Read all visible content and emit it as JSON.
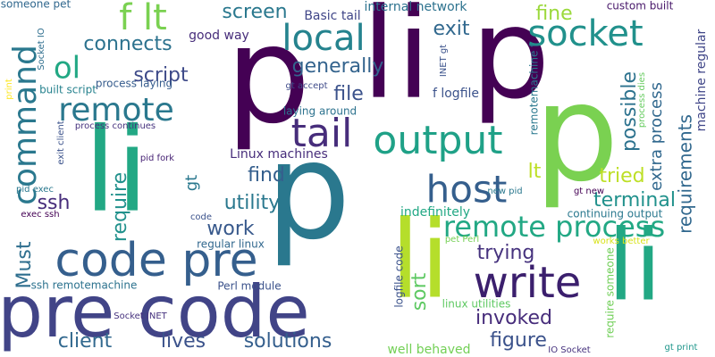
{
  "word_cloud": {
    "words": [
      {
        "text": "pre code",
        "color": "#414487"
      },
      {
        "text": "p",
        "color": "#440154"
      },
      {
        "text": "li",
        "color": "#22a884"
      },
      {
        "text": "p",
        "color": "#7ad151"
      },
      {
        "text": "li",
        "color": "#b5de2b"
      },
      {
        "text": "li",
        "color": "#22a884"
      },
      {
        "text": "p",
        "color": "#2a788e"
      },
      {
        "text": "li p",
        "color": "#440154"
      },
      {
        "text": "write",
        "color": "#3b1f6d"
      },
      {
        "text": "code pre",
        "color": "#355f8d"
      },
      {
        "text": "remote process",
        "color": "#22a884"
      },
      {
        "text": "output",
        "color": "#1fa187"
      },
      {
        "text": "tail",
        "color": "#472d7b"
      },
      {
        "text": "host",
        "color": "#355f8d"
      },
      {
        "text": "socket",
        "color": "#21918c"
      },
      {
        "text": "local",
        "color": "#25838e"
      },
      {
        "text": "remote",
        "color": "#2a788e"
      },
      {
        "text": "command",
        "color": "#2a788e"
      },
      {
        "text": "f lt",
        "color": "#7ad151"
      },
      {
        "text": "ol",
        "color": "#22a884"
      },
      {
        "text": "client",
        "color": "#31688e"
      },
      {
        "text": "lives",
        "color": "#3b528b"
      },
      {
        "text": "solutions",
        "color": "#355f8d"
      },
      {
        "text": "figure",
        "color": "#3b528b"
      },
      {
        "text": "invoked",
        "color": "#472d7b"
      },
      {
        "text": "trying",
        "color": "#46327e"
      },
      {
        "text": "terminal",
        "color": "#21918c"
      },
      {
        "text": "tried",
        "color": "#bddf26"
      },
      {
        "text": "possible",
        "color": "#2c728e"
      },
      {
        "text": "extra process",
        "color": "#31688e"
      },
      {
        "text": "requirements",
        "color": "#31688e"
      },
      {
        "text": "machine regular",
        "color": "#404688"
      },
      {
        "text": "custom built",
        "color": "#48186a"
      },
      {
        "text": "fine",
        "color": "#9bd93c"
      },
      {
        "text": "exit",
        "color": "#31688e"
      },
      {
        "text": "generally",
        "color": "#33638d"
      },
      {
        "text": "connects",
        "color": "#2c728e"
      },
      {
        "text": "script",
        "color": "#3e4a89"
      },
      {
        "text": "screen",
        "color": "#2a788e"
      },
      {
        "text": "good way",
        "color": "#472d7b"
      },
      {
        "text": "internal network",
        "color": "#2c728e"
      },
      {
        "text": "Basic tail",
        "color": "#404688"
      },
      {
        "text": "file",
        "color": "#3b528b"
      },
      {
        "text": "f logfile",
        "color": "#3b528b"
      },
      {
        "text": "lt",
        "color": "#bddf26"
      },
      {
        "text": "find",
        "color": "#355f8d"
      },
      {
        "text": "utility",
        "color": "#2a788e"
      },
      {
        "text": "work",
        "color": "#38598c"
      },
      {
        "text": "require",
        "color": "#21918c"
      },
      {
        "text": "gt",
        "color": "#2a788e"
      },
      {
        "text": "Linux machines",
        "color": "#472d7b"
      },
      {
        "text": "ssh",
        "color": "#472d7b"
      },
      {
        "text": "sort",
        "color": "#5ec962"
      },
      {
        "text": "Must",
        "color": "#2e6e8e"
      },
      {
        "text": "indefinitely",
        "color": "#22a884"
      },
      {
        "text": "continuing output",
        "color": "#2a788e"
      },
      {
        "text": "require someone",
        "color": "#70cf57"
      },
      {
        "text": "remotemachine f",
        "color": "#2a788e"
      },
      {
        "text": "logfile code",
        "color": "#3b528b"
      },
      {
        "text": "linux utilities",
        "color": "#5ec962"
      },
      {
        "text": "Perl module",
        "color": "#3b528b"
      },
      {
        "text": "ssh remotemachine",
        "color": "#2c728e"
      },
      {
        "text": "regular linux",
        "color": "#31688e"
      },
      {
        "text": "well behaved",
        "color": "#73d056"
      },
      {
        "text": "IO Socket",
        "color": "#46327e"
      },
      {
        "text": "Socket INET",
        "color": "#46327e"
      },
      {
        "text": "gt print",
        "color": "#1f968b"
      },
      {
        "text": "works better",
        "color": "#d8e219"
      },
      {
        "text": "process dies",
        "color": "#65cb5e"
      },
      {
        "text": "gt new",
        "color": "#440154"
      },
      {
        "text": "new pid",
        "color": "#2a788e"
      },
      {
        "text": "pet Perl",
        "color": "#75d054"
      },
      {
        "text": "gt accept",
        "color": "#3e4a89"
      },
      {
        "text": "INET gt",
        "color": "#3b528b"
      },
      {
        "text": "process continues",
        "color": "#46327e"
      },
      {
        "text": "pid fork",
        "color": "#482475"
      },
      {
        "text": "exit client",
        "color": "#3b528b"
      },
      {
        "text": "pid exec",
        "color": "#2a788e"
      },
      {
        "text": "exec ssh",
        "color": "#440154"
      },
      {
        "text": "code",
        "color": "#3b528b"
      },
      {
        "text": "built script",
        "color": "#26828e"
      },
      {
        "text": "process laying",
        "color": "#365c8d"
      },
      {
        "text": "laying around",
        "color": "#2c728e"
      },
      {
        "text": "someone pet",
        "color": "#31688e"
      },
      {
        "text": "Socket IO",
        "color": "#2e6e8e"
      },
      {
        "text": "print",
        "color": "#fde725"
      }
    ]
  }
}
